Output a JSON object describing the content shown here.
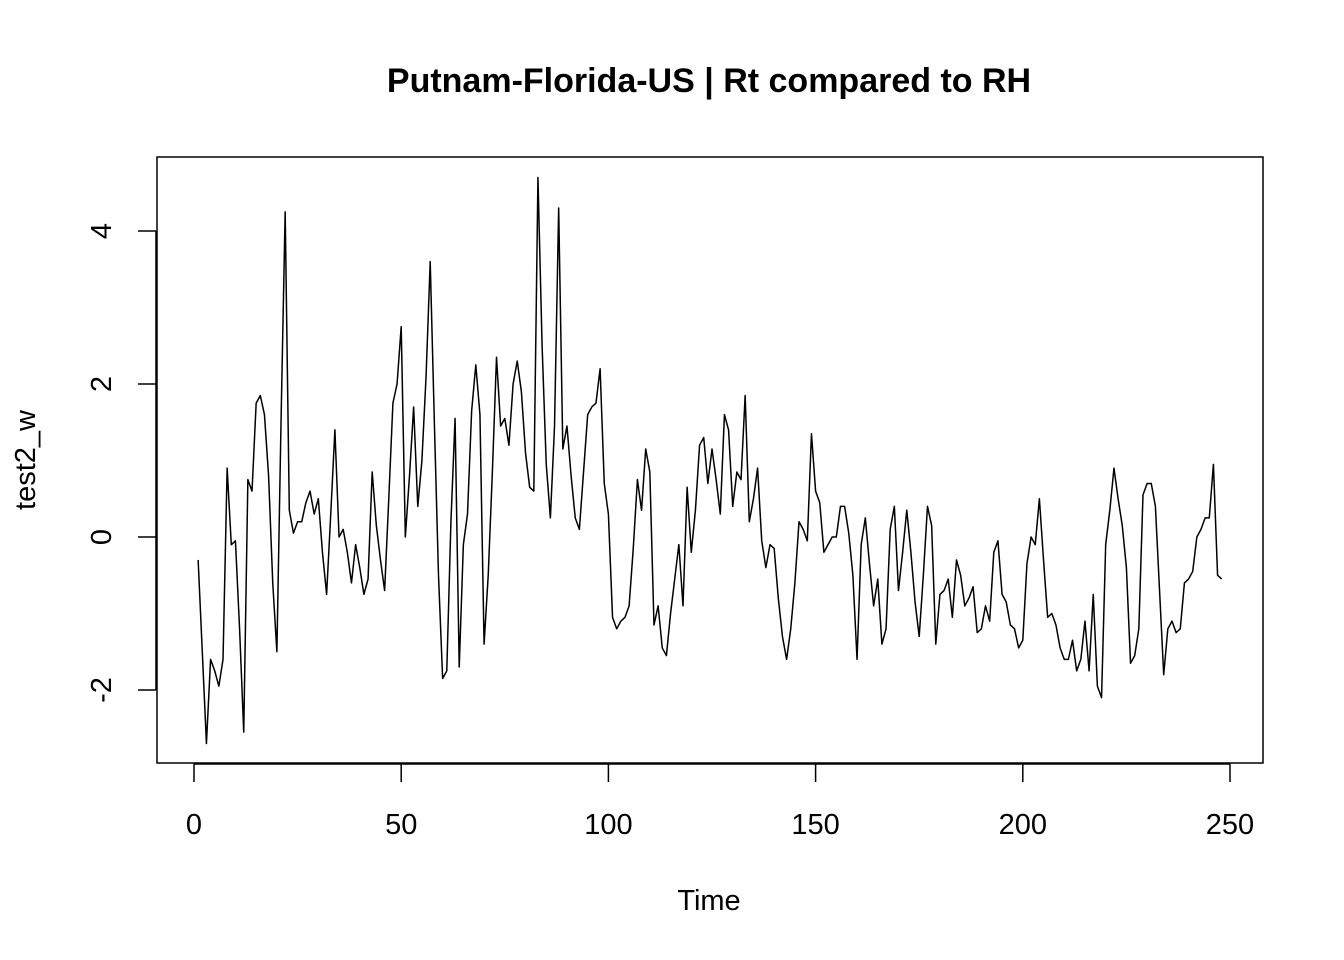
{
  "chart_data": {
    "type": "line",
    "title": "Putnam-Florida-US | Rt compared to RH",
    "xlabel": "Time",
    "ylabel": "test2_w",
    "xlim": [
      1,
      248
    ],
    "ylim": [
      -2.95,
      4.75
    ],
    "x_ticks": [
      0,
      50,
      100,
      150,
      200,
      250
    ],
    "y_ticks": [
      -2,
      0,
      2,
      4
    ],
    "grid": false,
    "legend": "none",
    "line_color": "#000000",
    "series": [
      {
        "x_start": 1,
        "values": [
          -0.3,
          -1.5,
          -2.7,
          -1.6,
          -1.75,
          -1.95,
          -1.6,
          0.9,
          -0.1,
          -0.05,
          -1.2,
          -2.55,
          0.75,
          0.6,
          1.75,
          1.85,
          1.6,
          0.8,
          -0.6,
          -1.5,
          1.5,
          4.25,
          0.35,
          0.05,
          0.2,
          0.2,
          0.45,
          0.6,
          0.3,
          0.5,
          -0.2,
          -0.75,
          0.3,
          1.4,
          0.0,
          0.1,
          -0.2,
          -0.6,
          -0.1,
          -0.4,
          -0.75,
          -0.55,
          0.85,
          0.15,
          -0.3,
          -0.7,
          0.5,
          1.75,
          2.0,
          2.75,
          0.0,
          0.8,
          1.7,
          0.4,
          1.0,
          2.1,
          3.6,
          1.5,
          -0.5,
          -1.85,
          -1.75,
          0.2,
          1.55,
          -1.7,
          -0.1,
          0.3,
          1.65,
          2.25,
          1.6,
          -1.4,
          -0.5,
          0.85,
          2.35,
          1.45,
          1.55,
          1.2,
          2.0,
          2.3,
          1.9,
          1.1,
          0.65,
          0.6,
          4.7,
          2.5,
          0.95,
          0.25,
          1.45,
          4.3,
          1.15,
          1.45,
          0.8,
          0.25,
          0.1,
          0.85,
          1.6,
          1.7,
          1.75,
          2.2,
          0.7,
          0.3,
          -1.05,
          -1.2,
          -1.1,
          -1.05,
          -0.9,
          -0.15,
          0.75,
          0.35,
          1.15,
          0.85,
          -1.15,
          -0.9,
          -1.45,
          -1.55,
          -1.0,
          -0.55,
          -0.1,
          -0.9,
          0.65,
          -0.2,
          0.35,
          1.2,
          1.3,
          0.7,
          1.15,
          0.75,
          0.3,
          1.6,
          1.4,
          0.4,
          0.85,
          0.75,
          1.85,
          0.2,
          0.5,
          0.9,
          -0.05,
          -0.4,
          -0.1,
          -0.15,
          -0.8,
          -1.3,
          -1.6,
          -1.2,
          -0.6,
          0.2,
          0.1,
          -0.05,
          1.35,
          0.6,
          0.45,
          -0.2,
          -0.1,
          0.0,
          0.0,
          0.4,
          0.4,
          0.05,
          -0.5,
          -1.6,
          -0.1,
          0.25,
          -0.35,
          -0.9,
          -0.55,
          -1.4,
          -1.2,
          0.1,
          0.4,
          -0.7,
          -0.2,
          0.35,
          -0.2,
          -0.85,
          -1.3,
          -0.5,
          0.4,
          0.15,
          -1.4,
          -0.75,
          -0.7,
          -0.55,
          -1.05,
          -0.3,
          -0.5,
          -0.9,
          -0.8,
          -0.65,
          -1.25,
          -1.2,
          -0.9,
          -1.1,
          -0.2,
          -0.05,
          -0.75,
          -0.85,
          -1.15,
          -1.2,
          -1.45,
          -1.35,
          -0.35,
          0.0,
          -0.1,
          0.5,
          -0.3,
          -1.05,
          -1.0,
          -1.15,
          -1.45,
          -1.6,
          -1.6,
          -1.35,
          -1.75,
          -1.6,
          -1.1,
          -1.75,
          -0.75,
          -1.95,
          -2.1,
          -0.1,
          0.35,
          0.9,
          0.5,
          0.15,
          -0.4,
          -1.65,
          -1.55,
          -1.2,
          0.55,
          0.7,
          0.7,
          0.4,
          -0.7,
          -1.8,
          -1.2,
          -1.1,
          -1.25,
          -1.2,
          -0.6,
          -0.55,
          -0.45,
          0.0,
          0.1,
          0.25,
          0.25,
          0.95,
          -0.5,
          -0.55
        ]
      }
    ]
  }
}
